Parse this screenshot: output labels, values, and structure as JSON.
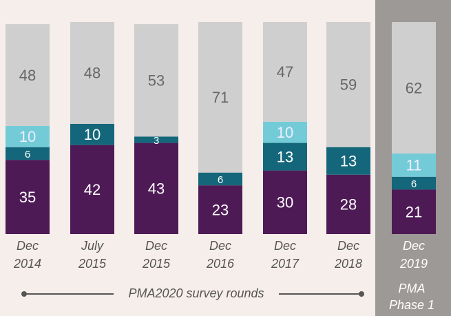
{
  "chart_data": {
    "type": "stacked_bar",
    "categories": [
      [
        "Dec",
        "2014"
      ],
      [
        "July",
        "2015"
      ],
      [
        "Dec",
        "2015"
      ],
      [
        "Dec",
        "2016"
      ],
      [
        "Dec",
        "2017"
      ],
      [
        "Dec",
        "2018"
      ],
      [
        "Dec",
        "2019"
      ]
    ],
    "series": [
      {
        "color": "#4e1a56",
        "values": [
          35,
          42,
          43,
          23,
          30,
          28,
          21
        ]
      },
      {
        "color": "#14677a",
        "values": [
          6,
          10,
          3,
          6,
          13,
          13,
          6
        ]
      },
      {
        "color": "#74cbd8",
        "values": [
          10,
          null,
          null,
          null,
          10,
          null,
          11
        ]
      },
      {
        "color": "#cfcfcf",
        "values": [
          48,
          48,
          53,
          71,
          47,
          59,
          62
        ]
      }
    ],
    "ylim": [
      0,
      100
    ],
    "rounds_label": "PMA2020 survey rounds",
    "phase_label": [
      "PMA",
      "Phase 1"
    ]
  }
}
